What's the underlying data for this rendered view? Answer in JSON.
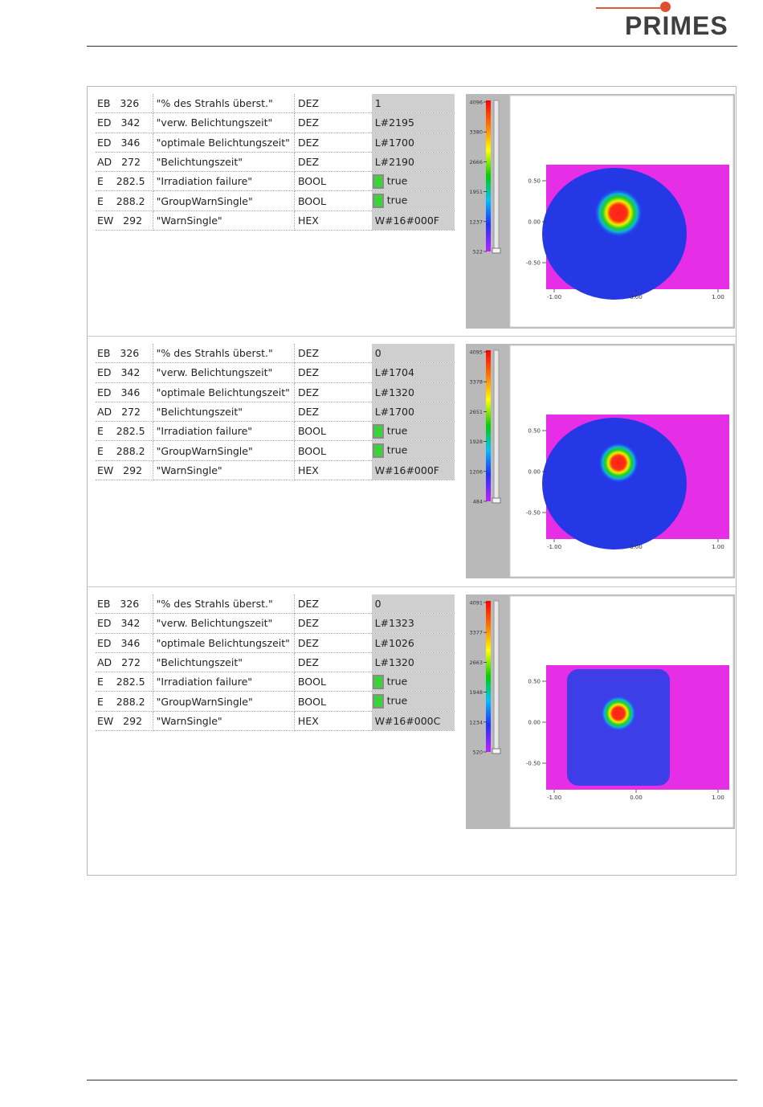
{
  "header": {
    "logo_text": "PRIMES"
  },
  "panels": [
    {
      "rows": [
        {
          "addr": "EB   326",
          "symbol": "\"% des Strahls überst.\"",
          "format": "DEZ",
          "value": "1",
          "led": false
        },
        {
          "addr": "ED   342",
          "symbol": "\"verw. Belichtungszeit\"",
          "format": "DEZ",
          "value": "L#2195",
          "led": false
        },
        {
          "addr": "ED   346",
          "symbol": "\"optimale Belichtungszeit\"",
          "format": "DEZ",
          "value": "L#1700",
          "led": false
        },
        {
          "addr": "AD   272",
          "symbol": "\"Belichtungszeit\"",
          "format": "DEZ",
          "value": "L#2190",
          "led": false
        },
        {
          "addr": "E    282.5",
          "symbol": "\"Irradiation failure\"",
          "format": "BOOL",
          "value": "true",
          "led": true
        },
        {
          "addr": "E    288.2",
          "symbol": "\"GroupWarnSingle\"",
          "format": "BOOL",
          "value": "true",
          "led": true
        },
        {
          "addr": "EW   292",
          "symbol": "\"WarnSingle\"",
          "format": "HEX",
          "value": "W#16#000F",
          "led": false
        }
      ],
      "scale_labels": [
        "4096",
        "3380",
        "2666",
        "1951",
        "1237",
        "522"
      ],
      "y_ticks": [
        "0.50",
        "0.00",
        "-0.50"
      ],
      "x_ticks": [
        "-1.00",
        "0.00",
        "1.00"
      ]
    },
    {
      "rows": [
        {
          "addr": "EB   326",
          "symbol": "\"% des Strahls überst.\"",
          "format": "DEZ",
          "value": "0",
          "led": false
        },
        {
          "addr": "ED   342",
          "symbol": "\"verw. Belichtungszeit\"",
          "format": "DEZ",
          "value": "L#1704",
          "led": false
        },
        {
          "addr": "ED   346",
          "symbol": "\"optimale Belichtungszeit\"",
          "format": "DEZ",
          "value": "L#1320",
          "led": false
        },
        {
          "addr": "AD   272",
          "symbol": "\"Belichtungszeit\"",
          "format": "DEZ",
          "value": "L#1700",
          "led": false
        },
        {
          "addr": "E    282.5",
          "symbol": "\"Irradiation failure\"",
          "format": "BOOL",
          "value": "true",
          "led": true
        },
        {
          "addr": "E    288.2",
          "symbol": "\"GroupWarnSingle\"",
          "format": "BOOL",
          "value": "true",
          "led": true
        },
        {
          "addr": "EW   292",
          "symbol": "\"WarnSingle\"",
          "format": "HEX",
          "value": "W#16#000F",
          "led": false
        }
      ],
      "scale_labels": [
        "4095",
        "3378",
        "2651",
        "1928",
        "1206",
        "484"
      ],
      "y_ticks": [
        "0.50",
        "0.00",
        "-0.50"
      ],
      "x_ticks": [
        "-1.00",
        "0.00",
        "1.00"
      ]
    },
    {
      "rows": [
        {
          "addr": "EB   326",
          "symbol": "\"% des Strahls überst.\"",
          "format": "DEZ",
          "value": "0",
          "led": false
        },
        {
          "addr": "ED   342",
          "symbol": "\"verw. Belichtungszeit\"",
          "format": "DEZ",
          "value": "L#1323",
          "led": false
        },
        {
          "addr": "ED   346",
          "symbol": "\"optimale Belichtungszeit\"",
          "format": "DEZ",
          "value": "L#1026",
          "led": false
        },
        {
          "addr": "AD   272",
          "symbol": "\"Belichtungszeit\"",
          "format": "DEZ",
          "value": "L#1320",
          "led": false
        },
        {
          "addr": "E    282.5",
          "symbol": "\"Irradiation failure\"",
          "format": "BOOL",
          "value": "true",
          "led": true
        },
        {
          "addr": "E    288.2",
          "symbol": "\"GroupWarnSingle\"",
          "format": "BOOL",
          "value": "true",
          "led": true
        },
        {
          "addr": "EW   292",
          "symbol": "\"WarnSingle\"",
          "format": "HEX",
          "value": "W#16#000C",
          "led": false
        }
      ],
      "scale_labels": [
        "4091",
        "3377",
        "2663",
        "1948",
        "1234",
        "520"
      ],
      "y_ticks": [
        "0.50",
        "0.00",
        "-0.50"
      ],
      "x_ticks": [
        "-1.00",
        "0.00",
        "1.00"
      ]
    }
  ],
  "colors": {
    "led_on": "#3bd23b",
    "value_bg": "#cfcfcf",
    "plot_bg": "#e62ee6",
    "beam_outer": "#2040f0",
    "beam_core": "#ff2020",
    "logo_accent": "#e0502e"
  }
}
